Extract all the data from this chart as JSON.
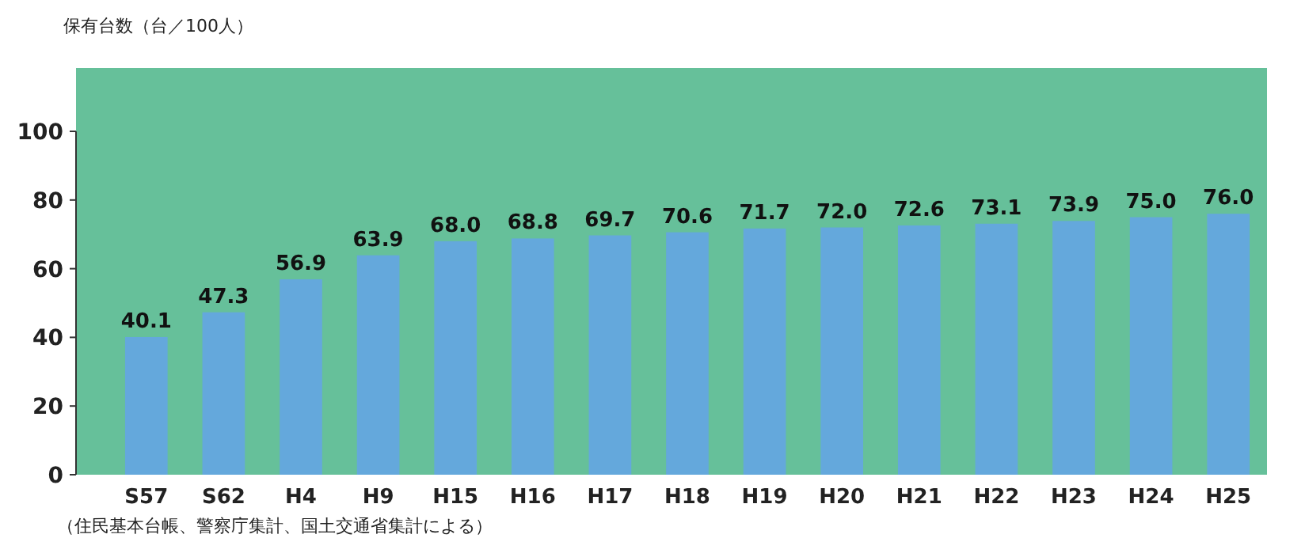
{
  "chart_data": {
    "type": "bar",
    "ylabel": "保有台数（台／100人）",
    "categories": [
      "S57",
      "S62",
      "H4",
      "H9",
      "H15",
      "H16",
      "H17",
      "H18",
      "H19",
      "H20",
      "H21",
      "H22",
      "H23",
      "H24",
      "H25"
    ],
    "values": [
      40.1,
      47.3,
      56.9,
      63.9,
      68.0,
      68.8,
      69.7,
      70.6,
      71.7,
      72.0,
      72.6,
      73.1,
      73.9,
      75.0,
      76.0
    ],
    "value_labels": [
      "40.1",
      "47.3",
      "56.9",
      "63.9",
      "68.0",
      "68.8",
      "69.7",
      "70.6",
      "71.7",
      "72.0",
      "72.6",
      "73.1",
      "73.9",
      "75.0",
      "76.0"
    ],
    "color": "#64a8dc",
    "ylim": [
      0,
      100
    ],
    "yticks": [
      0,
      20,
      40,
      60,
      80,
      100
    ],
    "annotations": [
      "（住民基本台帳、警察庁集計、国土交通省集計による）"
    ]
  }
}
